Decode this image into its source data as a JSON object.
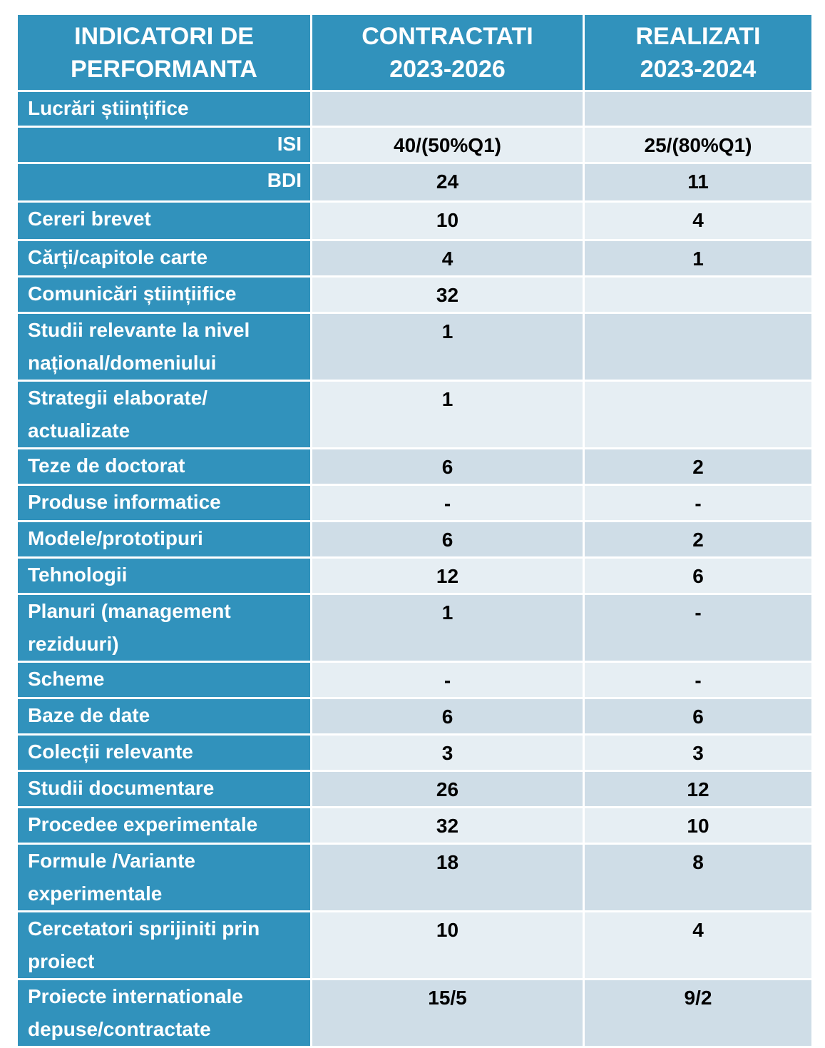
{
  "colors": {
    "header_bg": "#3192bc",
    "row_dark": "#cfdde7",
    "row_light": "#e6eef3"
  },
  "header": {
    "col1": "INDICATORI DE PERFORMANTA",
    "col2_line1": "CONTRACTATI",
    "col2_line2": "2023-2026",
    "col3_line1": "REALIZATI",
    "col3_line2": "2023-2024"
  },
  "rows": [
    {
      "label": "Lucrări științifice",
      "contract": "",
      "realized": ""
    },
    {
      "label": "ISI",
      "contract": "40/(50%Q1)",
      "realized": "25/(80%Q1)"
    },
    {
      "label": "BDI",
      "contract": "24",
      "realized": "11"
    },
    {
      "label": "Cereri brevet",
      "contract": "10",
      "realized": "4"
    },
    {
      "label": "Cărți/capitole carte",
      "contract": "4",
      "realized": "1"
    },
    {
      "label": "Comunicări științiifice",
      "contract": "32",
      "realized": ""
    },
    {
      "label": "Studii relevante la nivel național/domeniului",
      "contract": "1",
      "realized": ""
    },
    {
      "label": "Strategii elaborate/ actualizate",
      "contract": "1",
      "realized": ""
    },
    {
      "label": "Teze de doctorat",
      "contract": "6",
      "realized": "2"
    },
    {
      "label": "Produse informatice",
      "contract": "-",
      "realized": "-"
    },
    {
      "label": "Modele/prototipuri",
      "contract": "6",
      "realized": "2"
    },
    {
      "label": "Tehnologii",
      "contract": "12",
      "realized": "6"
    },
    {
      "label": "Planuri (management reziduuri)",
      "contract": "1",
      "realized": "-"
    },
    {
      "label": "Scheme",
      "contract": "-",
      "realized": "-"
    },
    {
      "label": "Baze de date",
      "contract": "6",
      "realized": "6"
    },
    {
      "label": "Colecții relevante",
      "contract": "3",
      "realized": "3"
    },
    {
      "label": "Studii documentare",
      "contract": "26",
      "realized": "12"
    },
    {
      "label": "Procedee experimentale",
      "contract": "32",
      "realized": "10"
    },
    {
      "label": "Formule /Variante experimentale",
      "contract": "18",
      "realized": "8"
    },
    {
      "label": "Cercetatori sprijiniti prin proiect",
      "contract": "10",
      "realized": "4"
    },
    {
      "label": "Proiecte internationale depuse/contractate",
      "contract": "15/5",
      "realized": "9/2"
    }
  ]
}
